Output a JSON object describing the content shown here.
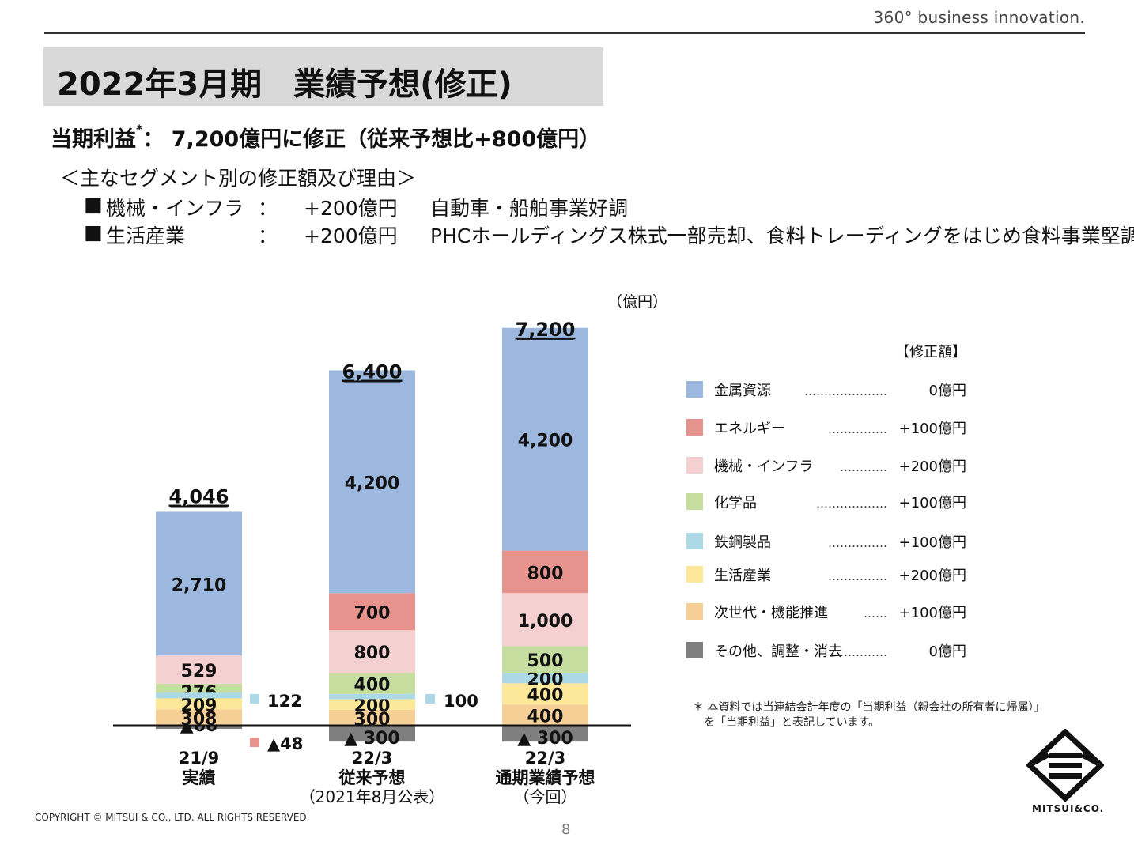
{
  "header": {
    "tagline": "360° business innovation.",
    "title": "2022年3月期　業績予想(修正)"
  },
  "subtitle": {
    "prefix": "当期利益",
    "asterisk": "*",
    "text": "：  7,200億円に修正（従来予想比+800億円）"
  },
  "segments": {
    "heading": "＜主なセグメント別の修正額及び理由＞",
    "items": [
      {
        "bullet": "■",
        "name": "機械・インフラ",
        "colon": "：",
        "amount": "+200億円",
        "reason": "自動車・船舶事業好調"
      },
      {
        "bullet": "■",
        "name": "生活産業",
        "colon": "：",
        "amount": "+200億円",
        "reason": "PHCホールディングス株式一部売却、食料トレーディングをはじめ食料事業堅調"
      }
    ]
  },
  "chart_data": {
    "type": "bar",
    "stacked": true,
    "unit_label": "（億円）",
    "categories": [
      {
        "lines": [
          "21/9",
          "実績"
        ],
        "sub": ""
      },
      {
        "lines": [
          "22/3",
          "従来予想"
        ],
        "sub": "（2021年8月公表）"
      },
      {
        "lines": [
          "22/3",
          "通期業績予想"
        ],
        "sub": "（今回）"
      }
    ],
    "totals": [
      "4,046",
      "6,400",
      "7,200"
    ],
    "total_values": [
      4046,
      6400,
      7200
    ],
    "series": [
      {
        "name": "その他、調整・消去",
        "color": "#7f7f7f",
        "values": [
          -60,
          -300,
          -300
        ],
        "labels": [
          "▲60",
          "▲ 300",
          "▲ 300"
        ]
      },
      {
        "name": "次世代・機能推進",
        "color": "#f6cf97",
        "values": [
          308,
          300,
          400
        ],
        "labels": [
          "308",
          "300",
          "400"
        ]
      },
      {
        "name": "生活産業",
        "color": "#fde89a",
        "values": [
          209,
          200,
          400
        ],
        "labels": [
          "209",
          "200",
          "400"
        ]
      },
      {
        "name": "鉄鋼製品",
        "color": "#add8e6",
        "values": [
          122,
          100,
          200
        ],
        "labels": [
          "",
          "",
          "200"
        ]
      },
      {
        "name": "化学品",
        "color": "#c5dd9e",
        "values": [
          276,
          400,
          500
        ],
        "labels": [
          "276",
          "400",
          "500"
        ]
      },
      {
        "name": "機械・インフラ",
        "color": "#f4d0d0",
        "values": [
          529,
          800,
          1000
        ],
        "labels": [
          "529",
          "800",
          "1,000"
        ]
      },
      {
        "name": "エネルギー",
        "color": "#e6938d",
        "values": [
          -48,
          700,
          800
        ],
        "labels": [
          "",
          "700",
          "800"
        ]
      },
      {
        "name": "金属資源",
        "color": "#9cb8de",
        "values": [
          2710,
          4200,
          4200
        ],
        "labels": [
          "2,710",
          "4,200",
          "4,200"
        ]
      }
    ],
    "side_labels": [
      {
        "series": "鉄鋼製品",
        "text": "122",
        "bar": 0
      },
      {
        "series": "エネルギー",
        "text": "▲48",
        "bar": 0
      },
      {
        "series": "鉄鋼製品",
        "text": "100",
        "bar": 1
      }
    ]
  },
  "legend": {
    "heading": "【修正額】",
    "items": [
      {
        "name": "金属資源",
        "leader": "…………………",
        "amount": "0億円",
        "color": "#9cb8de"
      },
      {
        "name": "エネルギー",
        "leader": "……………",
        "amount": "+100億円",
        "color": "#e6938d"
      },
      {
        "name": "機械・インフラ",
        "leader": "…………",
        "amount": "+200億円",
        "color": "#f4d0d0"
      },
      {
        "name": "化学品",
        "leader": "………………",
        "amount": "+100億円",
        "color": "#c5dd9e"
      },
      {
        "name": "鉄鋼製品",
        "leader": "……………",
        "amount": "+100億円",
        "color": "#add8e6"
      },
      {
        "name": "生活産業",
        "leader": "……………",
        "amount": "+200億円",
        "color": "#fde89a"
      },
      {
        "name": "次世代・機能推進",
        "leader": "……",
        "amount": "+100億円",
        "color": "#f6cf97"
      },
      {
        "name": "その他、調整・消去",
        "leader": "…………",
        "amount": "0億円",
        "color": "#7f7f7f"
      }
    ]
  },
  "footnote": {
    "line1": "＊ 本資料では当連結会計年度の「当期利益（親会社の所有者に帰属）」",
    "line2": "を「当期利益」と表記しています。"
  },
  "footer": {
    "copyright": "COPYRIGHT © MITSUI & CO., LTD. ALL RIGHTS RESERVED.",
    "page_number": "8",
    "logo_text": "MITSUI&CO."
  }
}
